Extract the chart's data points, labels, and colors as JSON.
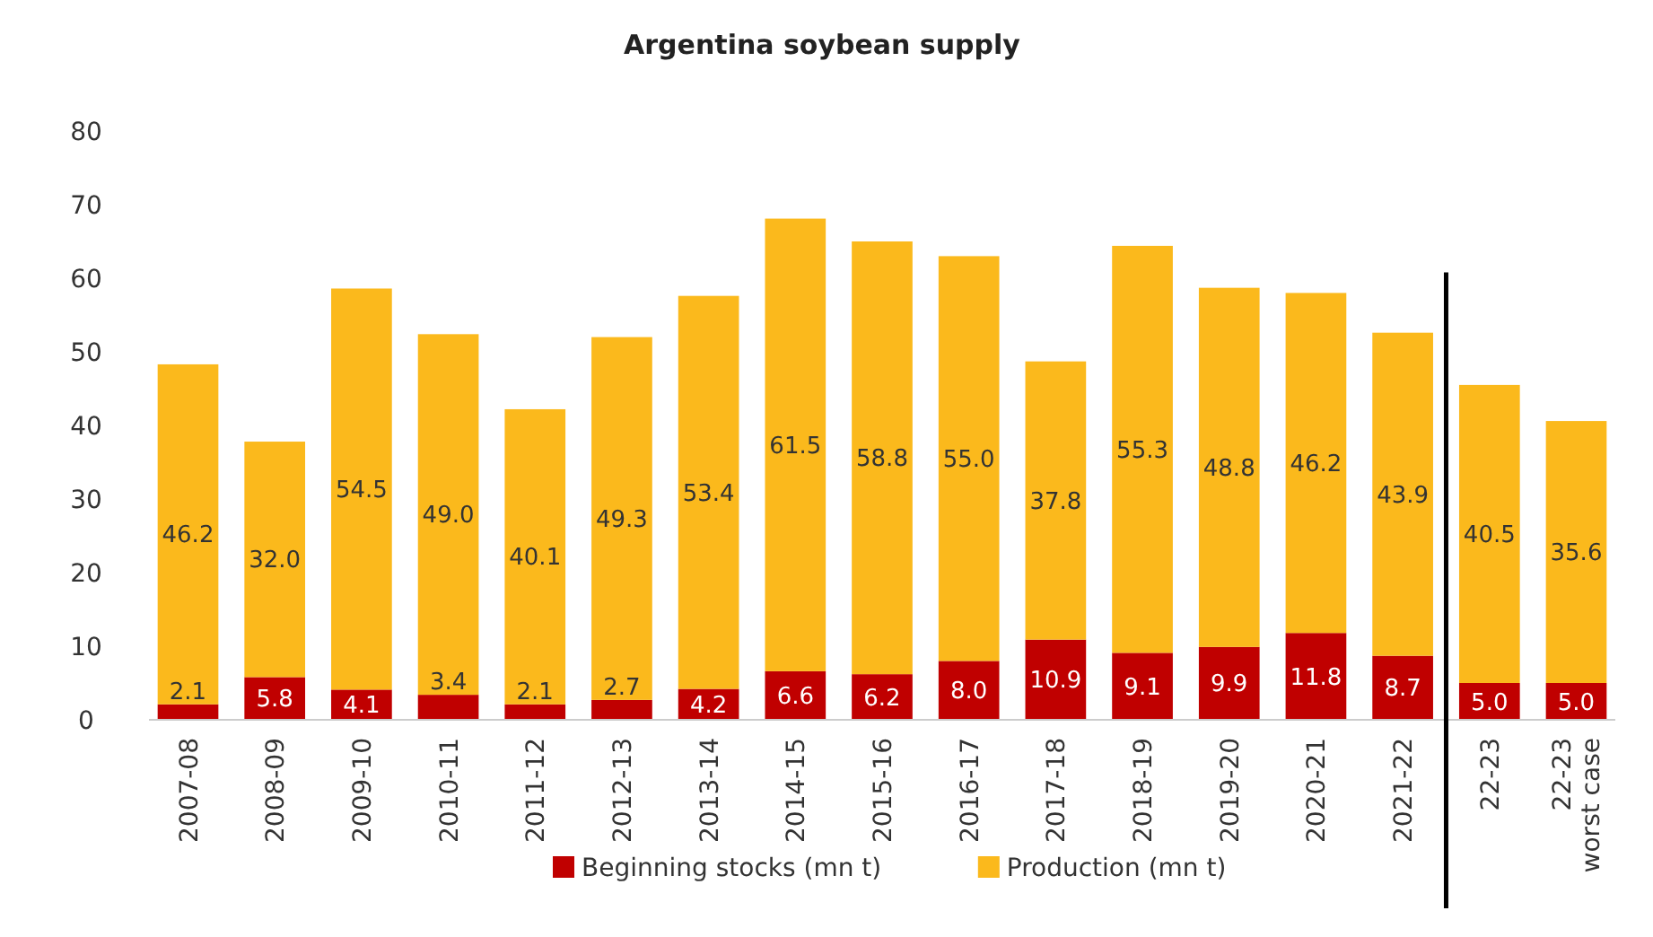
{
  "chart_data": {
    "type": "bar",
    "title": "Argentina soybean supply",
    "stacked": true,
    "categories": [
      "2007-08",
      "2008-09",
      "2009-10",
      "2010-11",
      "2011-12",
      "2012-13",
      "2013-14",
      "2014-15",
      "2015-16",
      "2016-17",
      "2017-18",
      "2018-19",
      "2019-20",
      "2020-21",
      "2021-22",
      "22-23",
      "22-23 worst case"
    ],
    "series": [
      {
        "name": "Beginning stocks (mn t)",
        "color": "#c00000",
        "values": [
          2.1,
          5.8,
          4.1,
          3.4,
          2.1,
          2.7,
          4.2,
          6.6,
          6.2,
          8.0,
          10.9,
          9.1,
          9.9,
          11.8,
          8.7,
          5.0,
          5.0
        ],
        "value_labels": [
          "2.1",
          "5.8",
          "4.1",
          "3.4",
          "2.1",
          "2.7",
          "4.2",
          "6.6",
          "6.2",
          "8.0",
          "10.9",
          "9.1",
          "9.9",
          "11.8",
          "8.7",
          "5.0",
          "5.0"
        ]
      },
      {
        "name": "Production (mn t)",
        "color": "#fbb91c",
        "values": [
          46.2,
          32.0,
          54.5,
          49.0,
          40.1,
          49.3,
          53.4,
          61.5,
          58.8,
          55.0,
          37.8,
          55.3,
          48.8,
          46.2,
          43.9,
          40.5,
          35.6
        ],
        "value_labels": [
          "46.2",
          "32.0",
          "54.5",
          "49.0",
          "40.1",
          "49.3",
          "53.4",
          "61.5",
          "58.8",
          "55.0",
          "37.8",
          "55.3",
          "48.8",
          "46.2",
          "43.9",
          "40.5",
          "35.6"
        ]
      }
    ],
    "ylim": [
      0,
      80
    ],
    "yticks": [
      0,
      10,
      20,
      30,
      40,
      50,
      60,
      70,
      80
    ],
    "grid": false,
    "legend": "bottom"
  }
}
